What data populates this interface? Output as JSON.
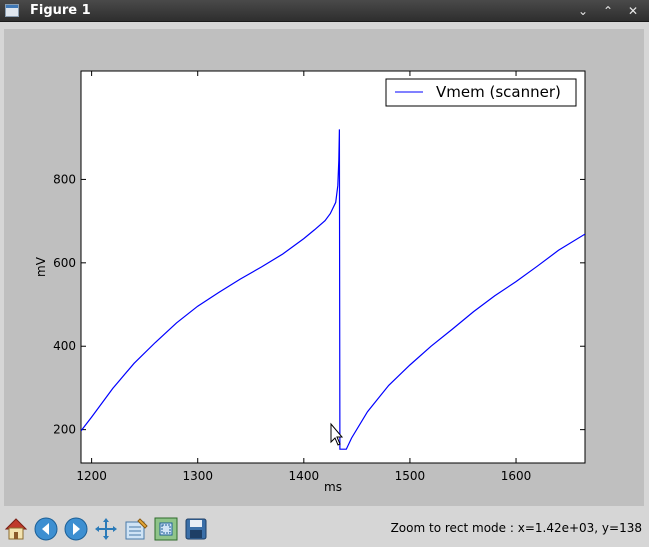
{
  "window": {
    "title": "Figure 1",
    "buttons": [
      "chevron-down-icon",
      "chevron-up-icon",
      "close-icon"
    ]
  },
  "toolbar": {
    "tools": [
      "home-icon",
      "back-arrow-icon",
      "forward-arrow-icon",
      "pan-icon",
      "subplots-icon",
      "zoom-rect-icon",
      "save-icon"
    ],
    "status": "Zoom to rect mode : x=1.42e+03, y=138"
  },
  "chart_data": {
    "type": "line",
    "xlabel": "ms",
    "ylabel": "mV",
    "xlim": [
      1190,
      1665
    ],
    "ylim": [
      120,
      1060
    ],
    "xticks": [
      1200,
      1300,
      1400,
      1500,
      1600
    ],
    "yticks": [
      200,
      400,
      600,
      800
    ],
    "grid": false,
    "legend_position": "top-right",
    "series": [
      {
        "name": "Vmem (scanner)",
        "color": "#0000ff",
        "x": [
          1190,
          1200,
          1220,
          1240,
          1260,
          1280,
          1300,
          1320,
          1340,
          1360,
          1380,
          1400,
          1410,
          1420,
          1425,
          1430,
          1432,
          1433,
          1433.5,
          1434,
          1436,
          1440,
          1445,
          1460,
          1480,
          1500,
          1520,
          1540,
          1560,
          1580,
          1600,
          1620,
          1640,
          1665
        ],
        "y": [
          197,
          230,
          299,
          359,
          409,
          456,
          496,
          529,
          561,
          590,
          621,
          658,
          679,
          701,
          718,
          745,
          785,
          845,
          920,
          153,
          153,
          153,
          180,
          243,
          306,
          355,
          400,
          441,
          483,
          521,
          555,
          592,
          630,
          669
        ]
      }
    ]
  }
}
